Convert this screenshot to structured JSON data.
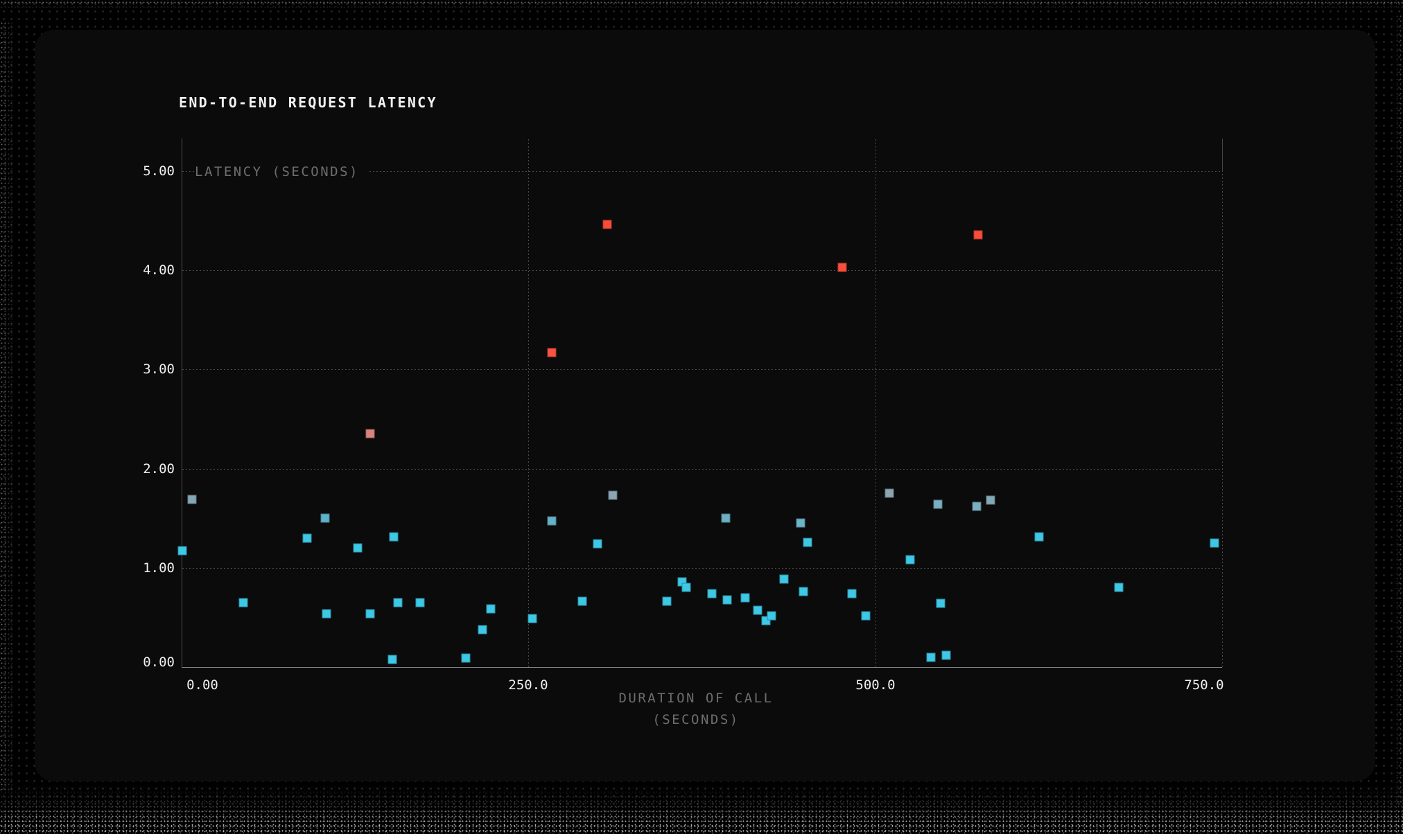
{
  "panel": {
    "title": "END-TO-END REQUEST LATENCY"
  },
  "axes": {
    "y_title": "LATENCY (SECONDS)",
    "x_title_line1": "DURATION OF CALL",
    "x_title_line2": "(SECONDS)"
  },
  "chart_data": {
    "type": "scatter",
    "title": "END-TO-END REQUEST LATENCY",
    "xlabel": "DURATION OF CALL (SECONDS)",
    "ylabel": "LATENCY (SECONDS)",
    "xlim": [
      0,
      750
    ],
    "ylim": [
      0,
      5
    ],
    "grid": "dotted",
    "legend": "none",
    "marker": "square",
    "color_encoding": "latency value: cyan (low) -> steel gray (mid ~1.5-1.8s) -> salmon (~2.4s) -> red (high >3s)",
    "x_ticks": [
      {
        "value": 0,
        "label": "0.00"
      },
      {
        "value": 250,
        "label": "250.0"
      },
      {
        "value": 500,
        "label": "500.0"
      },
      {
        "value": 750,
        "label": "750.0"
      }
    ],
    "y_ticks": [
      {
        "value": 0,
        "label": "0.00"
      },
      {
        "value": 1,
        "label": "1.00"
      },
      {
        "value": 2,
        "label": "2.00"
      },
      {
        "value": 3,
        "label": "3.00"
      },
      {
        "value": 4,
        "label": "4.00"
      },
      {
        "value": 5,
        "label": "5.00"
      }
    ],
    "x_gridlines": [
      250,
      500,
      750
    ],
    "y_gridlines": [
      1,
      2,
      3,
      4,
      5
    ],
    "points": [
      {
        "x": 1,
        "y": 1.17,
        "c": "#3dc8e6"
      },
      {
        "x": 8,
        "y": 1.69,
        "c": "#84a7b5"
      },
      {
        "x": 45,
        "y": 0.65,
        "c": "#3dc8e6"
      },
      {
        "x": 91,
        "y": 1.3,
        "c": "#3dc8e6"
      },
      {
        "x": 104,
        "y": 1.5,
        "c": "#60b2ca"
      },
      {
        "x": 105,
        "y": 0.54,
        "c": "#3dc8e6"
      },
      {
        "x": 127,
        "y": 1.2,
        "c": "#3dc8e6"
      },
      {
        "x": 136,
        "y": 0.54,
        "c": "#3dc8e6"
      },
      {
        "x": 136,
        "y": 2.35,
        "c": "#d8847d"
      },
      {
        "x": 152,
        "y": 0.08,
        "c": "#3dc8e6"
      },
      {
        "x": 153,
        "y": 1.31,
        "c": "#3dc8e6"
      },
      {
        "x": 156,
        "y": 0.65,
        "c": "#3dc8e6"
      },
      {
        "x": 172,
        "y": 0.65,
        "c": "#3dc8e6"
      },
      {
        "x": 205,
        "y": 0.09,
        "c": "#3dc8e6"
      },
      {
        "x": 217,
        "y": 0.38,
        "c": "#3dc8e6"
      },
      {
        "x": 223,
        "y": 0.59,
        "c": "#3dc8e6"
      },
      {
        "x": 253,
        "y": 0.49,
        "c": "#3dc8e6"
      },
      {
        "x": 267,
        "y": 1.47,
        "c": "#66b1c7"
      },
      {
        "x": 267,
        "y": 3.17,
        "c": "#f8543f"
      },
      {
        "x": 289,
        "y": 0.66,
        "c": "#3dc8e6"
      },
      {
        "x": 300,
        "y": 1.24,
        "c": "#3dc8e6"
      },
      {
        "x": 307,
        "y": 4.46,
        "c": "#fa4c38"
      },
      {
        "x": 311,
        "y": 1.73,
        "c": "#8ba6b2"
      },
      {
        "x": 350,
        "y": 0.66,
        "c": "#3dc8e6"
      },
      {
        "x": 361,
        "y": 0.86,
        "c": "#3dc8e6"
      },
      {
        "x": 364,
        "y": 0.8,
        "c": "#3dc8e6"
      },
      {
        "x": 382,
        "y": 0.74,
        "c": "#3dc8e6"
      },
      {
        "x": 392,
        "y": 1.5,
        "c": "#6cb0c3"
      },
      {
        "x": 393,
        "y": 0.68,
        "c": "#3dc8e6"
      },
      {
        "x": 406,
        "y": 0.7,
        "c": "#3dc8e6"
      },
      {
        "x": 415,
        "y": 0.57,
        "c": "#3dc8e6"
      },
      {
        "x": 421,
        "y": 0.47,
        "c": "#3dc8e6"
      },
      {
        "x": 425,
        "y": 0.52,
        "c": "#3dc8e6"
      },
      {
        "x": 434,
        "y": 0.89,
        "c": "#3dc8e6"
      },
      {
        "x": 446,
        "y": 1.45,
        "c": "#6cb4c7"
      },
      {
        "x": 448,
        "y": 0.76,
        "c": "#3dc8e6"
      },
      {
        "x": 451,
        "y": 1.26,
        "c": "#3dc8e6"
      },
      {
        "x": 476,
        "y": 4.03,
        "c": "#f94e3b"
      },
      {
        "x": 483,
        "y": 0.74,
        "c": "#3dc8e6"
      },
      {
        "x": 493,
        "y": 0.52,
        "c": "#3dc8e6"
      },
      {
        "x": 510,
        "y": 1.75,
        "c": "#8ba6b1"
      },
      {
        "x": 525,
        "y": 1.08,
        "c": "#3dc8e6"
      },
      {
        "x": 540,
        "y": 0.1,
        "c": "#3dc8e6"
      },
      {
        "x": 545,
        "y": 1.64,
        "c": "#7aafc0"
      },
      {
        "x": 547,
        "y": 0.64,
        "c": "#3dc8e6"
      },
      {
        "x": 551,
        "y": 0.12,
        "c": "#3dc8e6"
      },
      {
        "x": 573,
        "y": 1.62,
        "c": "#7cafbf"
      },
      {
        "x": 574,
        "y": 4.36,
        "c": "#fa4c38"
      },
      {
        "x": 583,
        "y": 1.68,
        "c": "#83a9b7"
      },
      {
        "x": 618,
        "y": 1.31,
        "c": "#3dc8e6"
      },
      {
        "x": 675,
        "y": 0.8,
        "c": "#3dc8e6"
      },
      {
        "x": 744,
        "y": 1.25,
        "c": "#3dc8e6"
      }
    ]
  }
}
